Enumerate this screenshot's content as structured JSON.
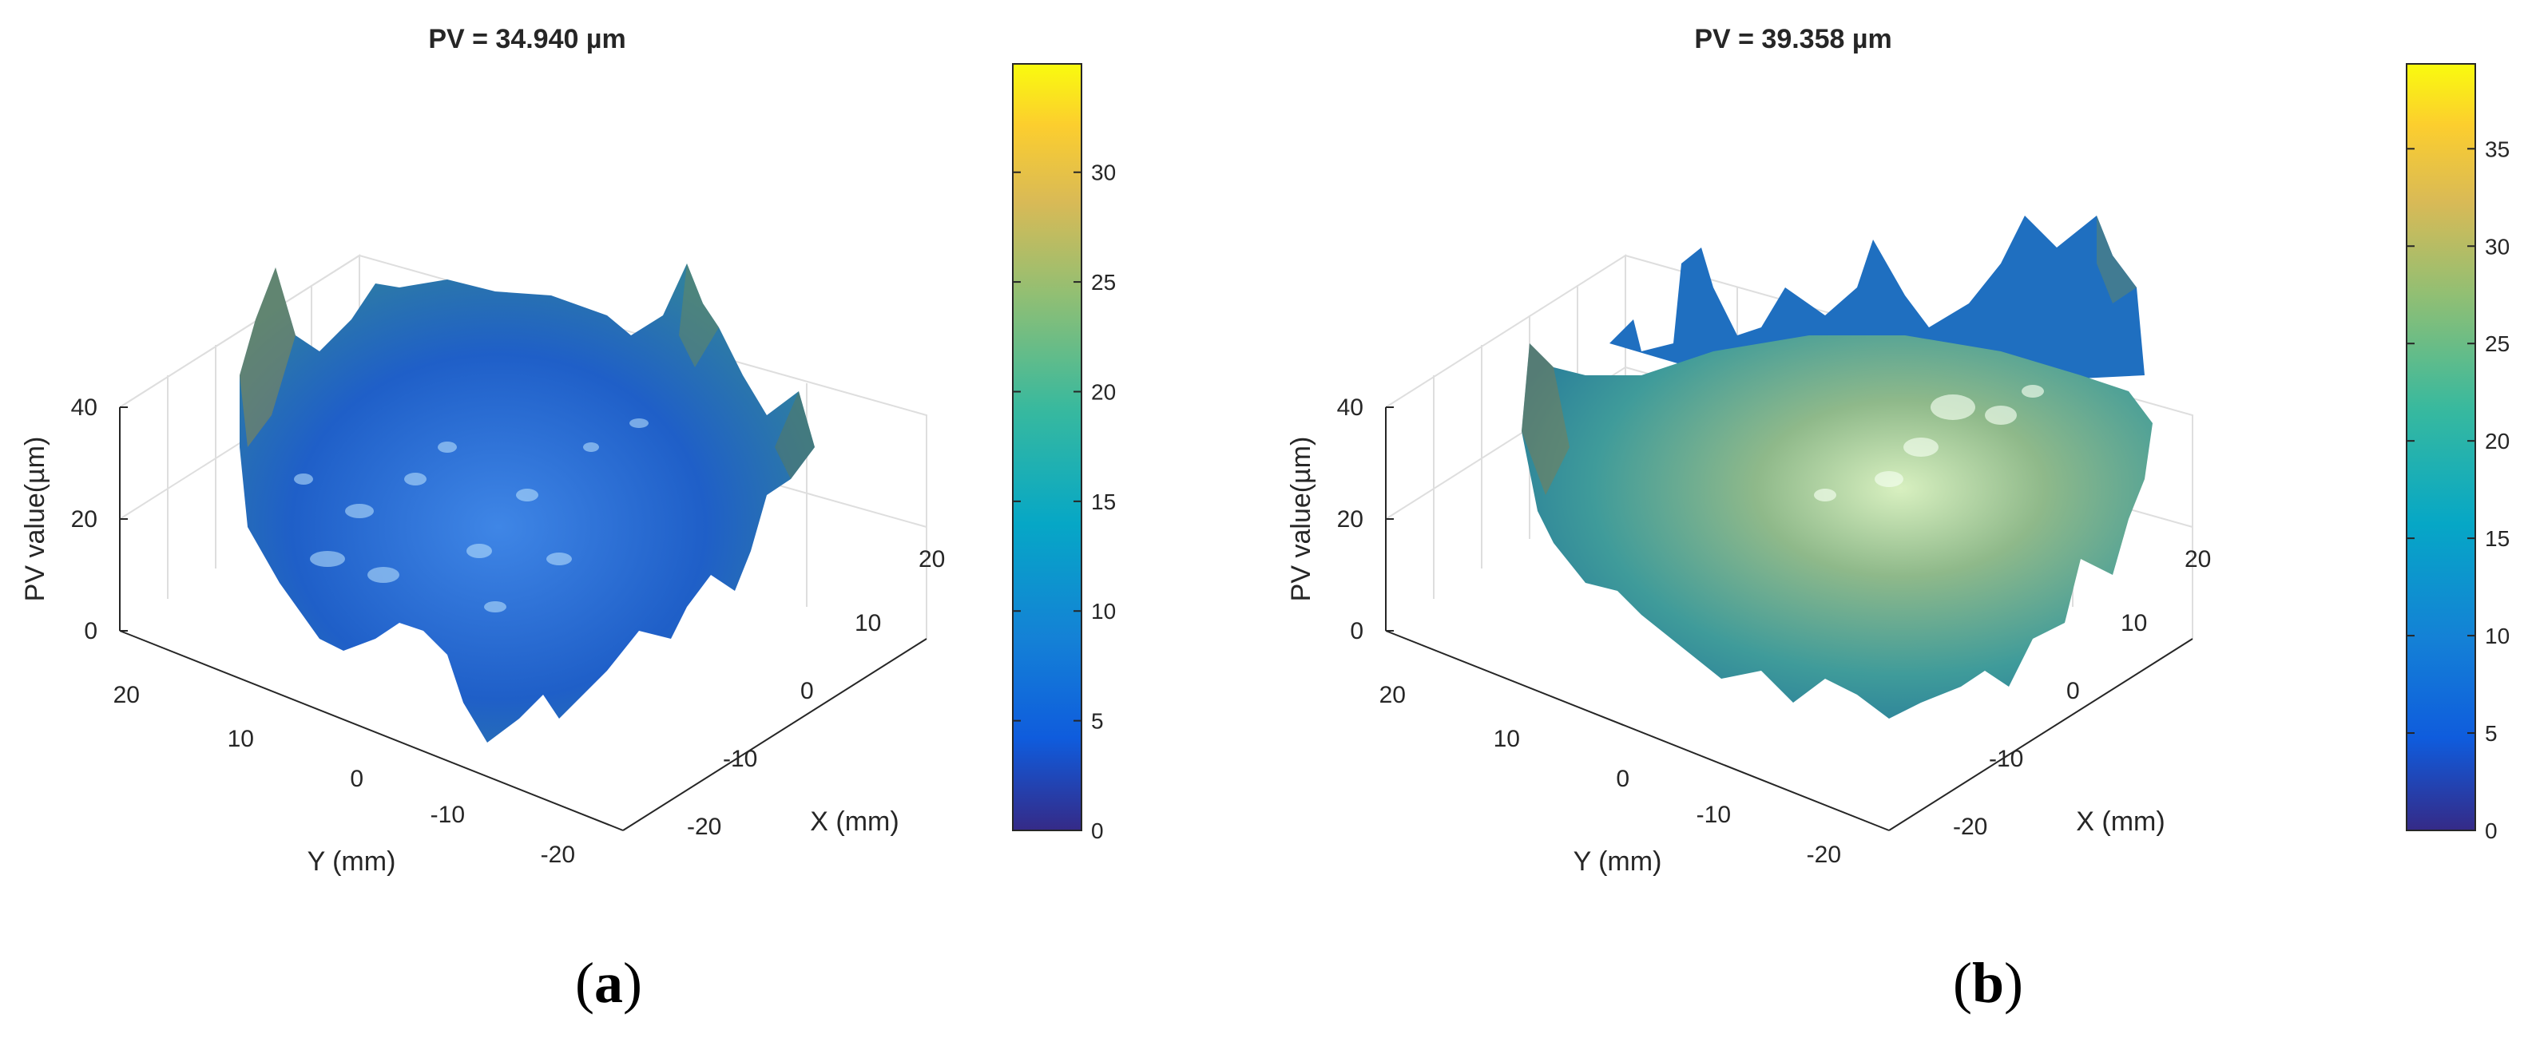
{
  "chart_data": [
    {
      "type": "surface",
      "panel_label": "a",
      "title": "PV = 34.940 µm",
      "xlabel": "X (mm)",
      "ylabel": "Y (mm)",
      "zlabel": "PV value(µm)",
      "xticks": [
        "20",
        "10",
        "0",
        "-10",
        "-20"
      ],
      "yticks": [
        "20",
        "10",
        "0",
        "-10",
        "-20"
      ],
      "zticks": [
        "40",
        "20",
        "0"
      ],
      "zlim": [
        0,
        40
      ],
      "colorbar": {
        "ticks": [
          "30",
          "25",
          "20",
          "15",
          "10",
          "5",
          "0"
        ],
        "range": [
          0,
          34.94
        ],
        "colormap": "parula"
      }
    },
    {
      "type": "surface",
      "panel_label": "b",
      "title": "PV = 39.358 µm",
      "xlabel": "X (mm)",
      "ylabel": "Y (mm)",
      "zlabel": "PV value(µm)",
      "xticks": [
        "20",
        "10",
        "0",
        "-10",
        "-20"
      ],
      "yticks": [
        "20",
        "10",
        "0",
        "-10",
        "-20"
      ],
      "zticks": [
        "40",
        "20",
        "0"
      ],
      "zlim": [
        0,
        40
      ],
      "colorbar": {
        "ticks": [
          "35",
          "30",
          "25",
          "20",
          "15",
          "10",
          "5",
          "0"
        ],
        "range": [
          0,
          39.358
        ],
        "colormap": "parula"
      }
    }
  ],
  "colors": {
    "parula": [
      "#352a87",
      "#0f5cdd",
      "#1481d6",
      "#06a7c6",
      "#38b99e",
      "#92bf73",
      "#d9ba56",
      "#fcce2e",
      "#f9fb0e"
    ]
  }
}
